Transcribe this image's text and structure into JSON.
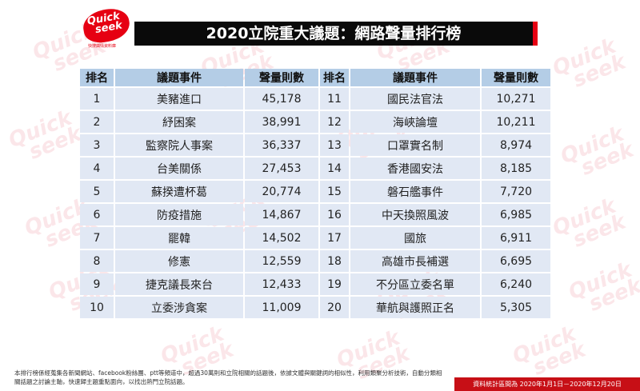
{
  "logo": {
    "line1": "Quick",
    "line2": "seek",
    "sub": "快搜輿情資料庫"
  },
  "watermark": {
    "line1": "Quick",
    "line2": "seek"
  },
  "title": "2020立院重大議題：網路聲量排行榜",
  "table": {
    "headers": [
      "排名",
      "議題事件",
      "聲量則數",
      "排名",
      "議題事件",
      "聲量則數"
    ],
    "left": [
      {
        "rank": "1",
        "topic": "美豬進口",
        "count": "45,178"
      },
      {
        "rank": "2",
        "topic": "紓困案",
        "count": "38,991"
      },
      {
        "rank": "3",
        "topic": "監察院人事案",
        "count": "36,337"
      },
      {
        "rank": "4",
        "topic": "台美關係",
        "count": "27,453"
      },
      {
        "rank": "5",
        "topic": "蘇揆遭杯葛",
        "count": "20,774"
      },
      {
        "rank": "6",
        "topic": "防疫措施",
        "count": "14,867"
      },
      {
        "rank": "7",
        "topic": "罷韓",
        "count": "14,502"
      },
      {
        "rank": "8",
        "topic": "修憲",
        "count": "12,559"
      },
      {
        "rank": "9",
        "topic": "捷克議長來台",
        "count": "12,433"
      },
      {
        "rank": "10",
        "topic": "立委涉貪案",
        "count": "11,009"
      }
    ],
    "right": [
      {
        "rank": "11",
        "topic": "國民法官法",
        "count": "10,271"
      },
      {
        "rank": "12",
        "topic": "海峽論壇",
        "count": "10,211"
      },
      {
        "rank": "13",
        "topic": "口罩實名制",
        "count": "8,974"
      },
      {
        "rank": "14",
        "topic": "香港國安法",
        "count": "8,185"
      },
      {
        "rank": "15",
        "topic": "磐石艦事件",
        "count": "7,720"
      },
      {
        "rank": "16",
        "topic": "中天換照風波",
        "count": "6,985"
      },
      {
        "rank": "17",
        "topic": "國旅",
        "count": "6,911"
      },
      {
        "rank": "18",
        "topic": "高雄市長補選",
        "count": "6,695"
      },
      {
        "rank": "19",
        "topic": "不分區立委名單",
        "count": "6,240"
      },
      {
        "rank": "20",
        "topic": "華航與護照正名",
        "count": "5,305"
      }
    ]
  },
  "footnote": "本排行榜係經蒐集各新聞網站、facebook粉絲團、ptt等頻道中，超過30萬則和立院相關的話題後，依據文體與關鍵詞的相似性，利用類聚分析技術，自動分類相關話題之討論主軸，快速歸主題重點面向，以找出熱門立院話題。",
  "period": "資料統計區間為 2020年1月1日－2020年12月20日",
  "colors": {
    "brand_red": "#e60012",
    "header_bg": "#b4cde6",
    "cell_bg": "#e1e8f4",
    "title_bg": "#0a0a0a"
  }
}
